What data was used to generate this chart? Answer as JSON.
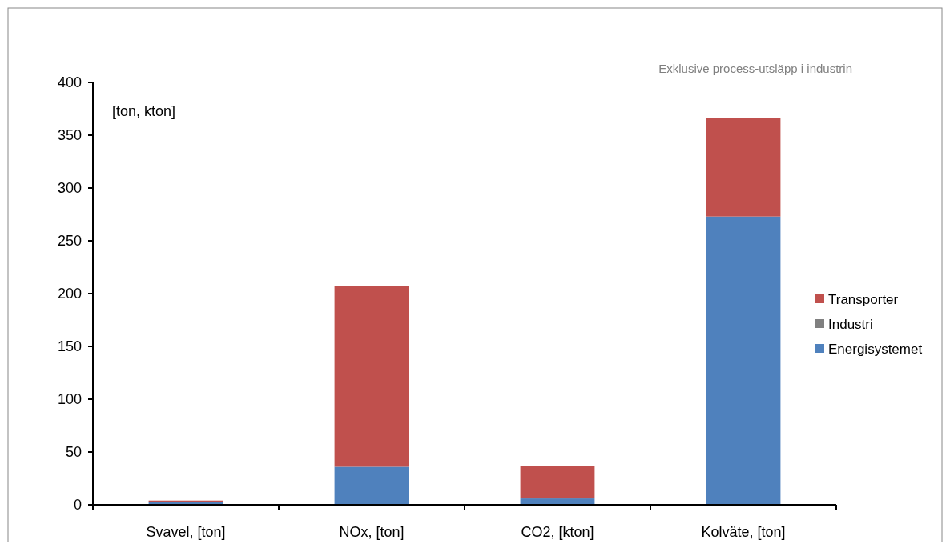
{
  "chart_data": {
    "type": "bar",
    "stacked": true,
    "categories": [
      "Svavel, [ton]",
      "NOx, [ton]",
      "CO2, [kton]",
      "Kolväte, [ton]"
    ],
    "series": [
      {
        "name": "Energisystemet",
        "color": "#4f81bd",
        "values": [
          3,
          36,
          6,
          273
        ]
      },
      {
        "name": "Industri",
        "color": "#808080",
        "values": [
          0,
          0,
          0,
          0
        ]
      },
      {
        "name": "Transporter",
        "color": "#c0504d",
        "values": [
          1,
          171,
          31,
          93
        ]
      }
    ],
    "ylim": [
      0,
      400
    ],
    "yticks": [
      0,
      50,
      100,
      150,
      200,
      250,
      300,
      350,
      400
    ],
    "legend": "right",
    "annotations": [
      "[ton, kton]",
      "Exklusive process-utsläpp i industrin"
    ]
  }
}
